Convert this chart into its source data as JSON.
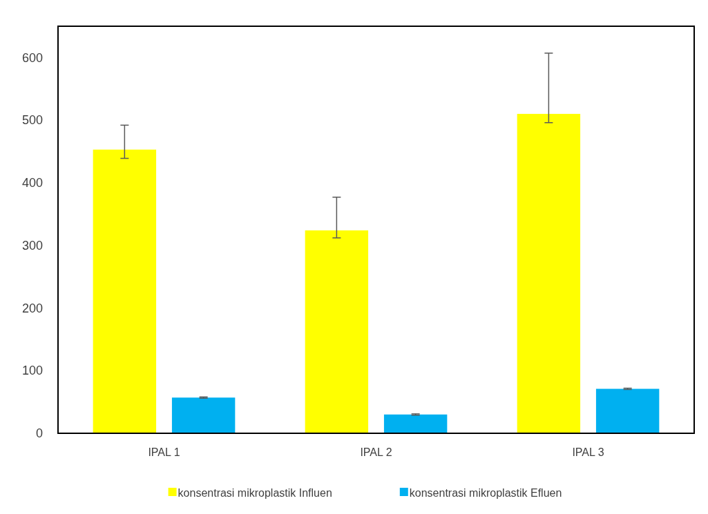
{
  "chart_data": {
    "type": "bar",
    "categories": [
      "IPAL 1",
      "IPAL 2",
      "IPAL 3"
    ],
    "series": [
      {
        "name": "konsentrasi mikroplastik Influen",
        "color": "#ffff00",
        "values": [
          453,
          324,
          510
        ],
        "errors": [
          [
            439,
            492
          ],
          [
            312,
            377
          ],
          [
            496,
            607
          ]
        ]
      },
      {
        "name": "konsentrasi mikroplastik Efluen",
        "color": "#00b0f0",
        "values": [
          57,
          30,
          71
        ],
        "errors": [
          1,
          1,
          1
        ]
      }
    ],
    "ylim": [
      0,
      650
    ],
    "yticks": [
      0,
      100,
      200,
      300,
      400,
      500,
      600
    ],
    "grid": false,
    "legend": "bottom"
  }
}
